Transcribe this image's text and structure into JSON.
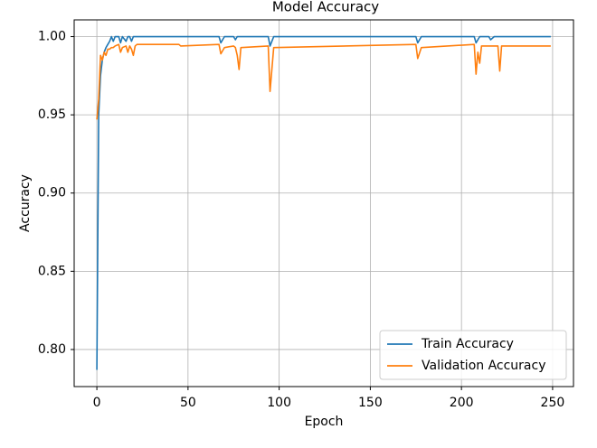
{
  "chart_data": {
    "type": "line",
    "title": "Model Accuracy",
    "xlabel": "Epoch",
    "ylabel": "Accuracy",
    "x": [
      0,
      1,
      2,
      3,
      4,
      5,
      6,
      7,
      8,
      9,
      10,
      12,
      13,
      14,
      16,
      17,
      18,
      19,
      20,
      21,
      22,
      45,
      46,
      67,
      68,
      70,
      75,
      76,
      77,
      78,
      79,
      94,
      95,
      97,
      175,
      176,
      178,
      207,
      208,
      209,
      210,
      211,
      215,
      216,
      218,
      220,
      221,
      222,
      249
    ],
    "series": [
      {
        "name": "Train Accuracy",
        "color": "#1f77b4",
        "values": [
          0.787,
          0.95,
          0.975,
          0.985,
          0.99,
          0.993,
          0.995,
          0.997,
          1.0,
          0.997,
          1.0,
          1.0,
          0.996,
          1.0,
          0.997,
          1.0,
          1.0,
          0.997,
          1.0,
          1.0,
          1.0,
          1.0,
          1.0,
          1.0,
          0.996,
          1.0,
          1.0,
          0.998,
          1.0,
          1.0,
          1.0,
          1.0,
          0.994,
          1.0,
          1.0,
          0.996,
          1.0,
          1.0,
          0.996,
          0.998,
          1.0,
          1.0,
          1.0,
          0.998,
          1.0,
          1.0,
          1.0,
          1.0,
          1.0
        ]
      },
      {
        "name": "Validation Accuracy",
        "color": "#ff7f0e",
        "values": [
          0.947,
          0.96,
          0.988,
          0.985,
          0.99,
          0.988,
          0.992,
          0.992,
          0.993,
          0.993,
          0.994,
          0.995,
          0.99,
          0.993,
          0.994,
          0.99,
          0.994,
          0.992,
          0.988,
          0.994,
          0.995,
          0.995,
          0.994,
          0.995,
          0.989,
          0.993,
          0.994,
          0.993,
          0.988,
          0.979,
          0.993,
          0.994,
          0.965,
          0.993,
          0.995,
          0.986,
          0.993,
          0.995,
          0.976,
          0.99,
          0.983,
          0.994,
          0.994,
          0.994,
          0.994,
          0.994,
          0.978,
          0.994,
          0.994
        ]
      }
    ],
    "xlim": [
      -12.45,
      261.45
    ],
    "xticks": [
      0,
      50,
      100,
      150,
      200,
      250
    ],
    "ylim": [
      0.7763,
      1.0107
    ],
    "yticks": [
      {
        "value": 0.8,
        "label": "0.80"
      },
      0.85,
      {
        "value": 0.9,
        "label": "0.90"
      },
      0.95,
      {
        "value": 1,
        "label": "1.00"
      }
    ],
    "grid": true,
    "legend": "lower right"
  }
}
